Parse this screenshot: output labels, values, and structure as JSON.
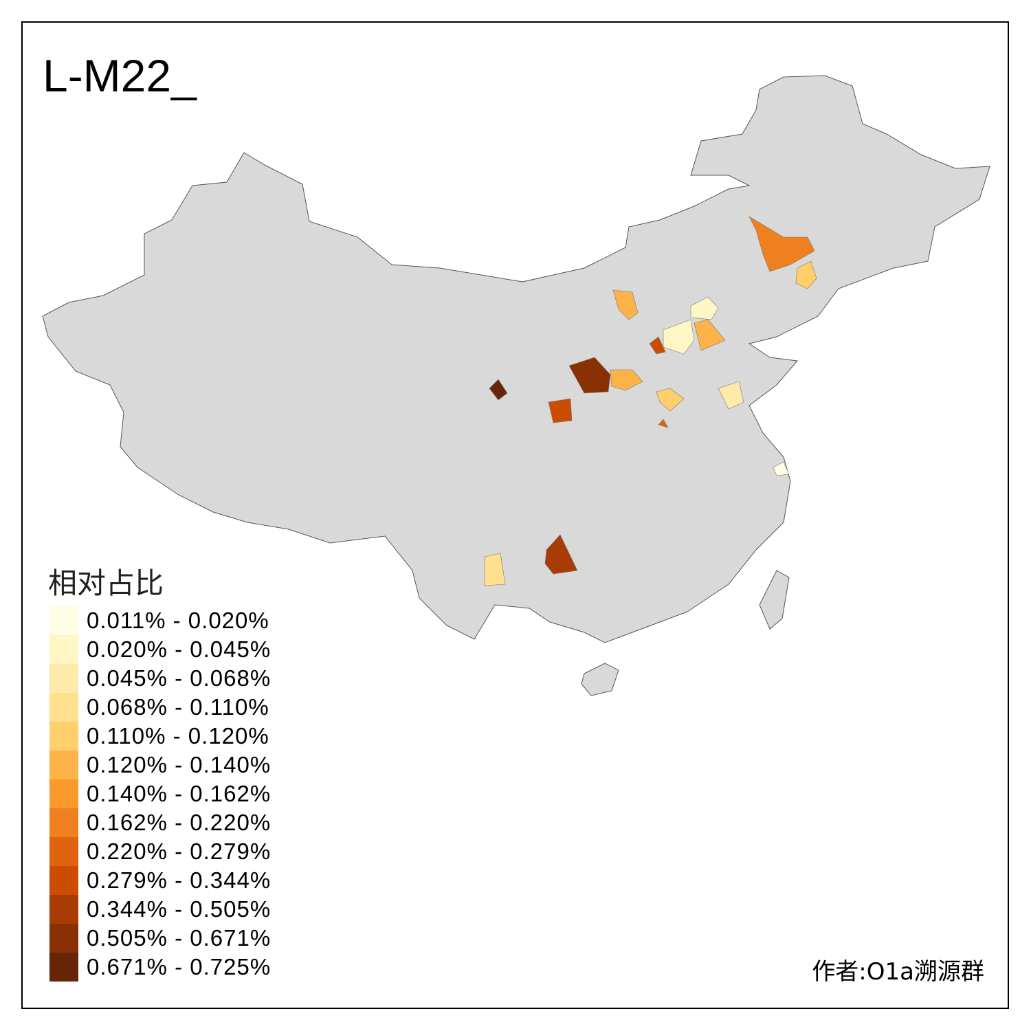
{
  "title": "L-M22_",
  "legend": {
    "title": "相对占比",
    "items": [
      {
        "label": "0.011% - 0.020%",
        "color": "#fffde4"
      },
      {
        "label": "0.020% - 0.045%",
        "color": "#fff6c6"
      },
      {
        "label": "0.045% - 0.068%",
        "color": "#feebaa"
      },
      {
        "label": "0.068% - 0.110%",
        "color": "#fee08f"
      },
      {
        "label": "0.110% - 0.120%",
        "color": "#fecf6a"
      },
      {
        "label": "0.120% - 0.140%",
        "color": "#fdb347"
      },
      {
        "label": "0.140% - 0.162%",
        "color": "#fb9a2c"
      },
      {
        "label": "0.162% - 0.220%",
        "color": "#f07f1f"
      },
      {
        "label": "0.220% - 0.279%",
        "color": "#e0640f"
      },
      {
        "label": "0.279% - 0.344%",
        "color": "#cc4c02"
      },
      {
        "label": "0.344% - 0.505%",
        "color": "#a93c04"
      },
      {
        "label": "0.505% - 0.671%",
        "color": "#8a3005"
      },
      {
        "label": "0.671% - 0.725%",
        "color": "#662506"
      }
    ]
  },
  "base_fill": "#d9d9d9",
  "credit": "作者:O1a溯源群"
}
